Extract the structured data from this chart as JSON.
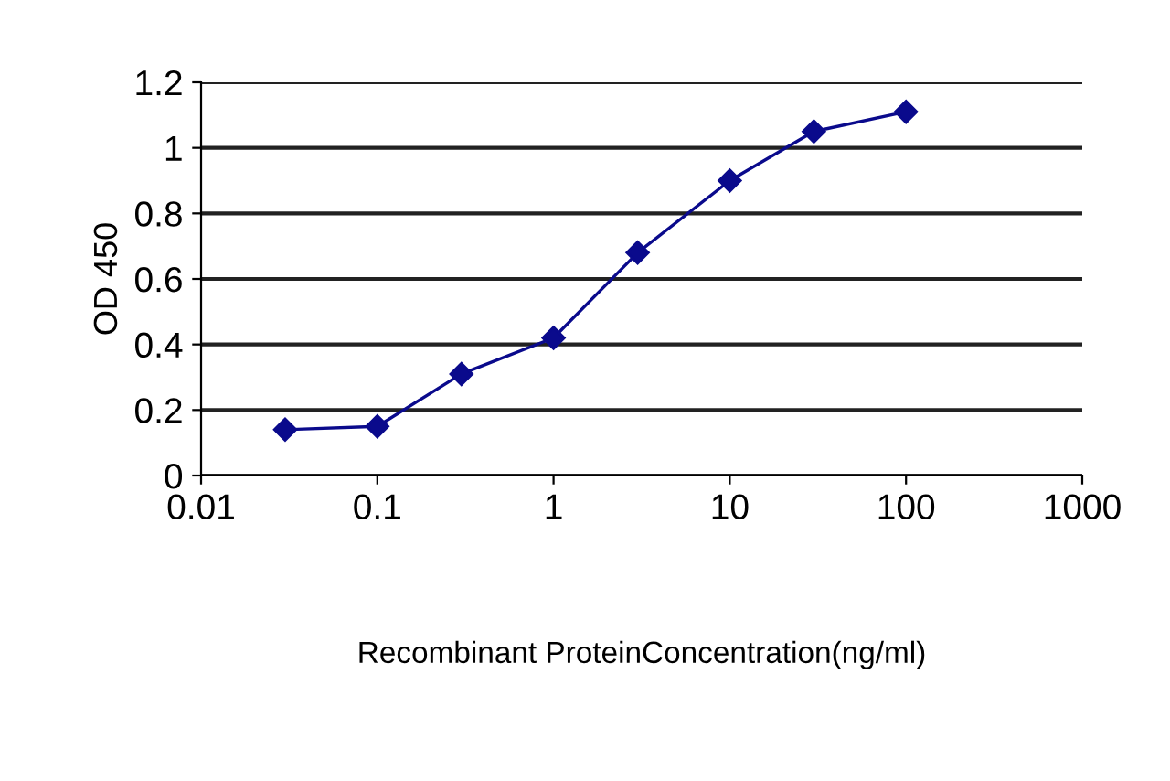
{
  "chart_data": {
    "type": "line",
    "xlabel": "Recombinant ProteinConcentration(ng/ml)",
    "ylabel": "OD 450",
    "x": [
      0.03,
      0.1,
      0.3,
      1,
      3,
      10,
      30,
      100
    ],
    "series": [
      {
        "color": "#0a0a8c",
        "values": [
          0.14,
          0.15,
          0.31,
          0.42,
          0.68,
          0.9,
          1.05,
          1.11
        ]
      }
    ],
    "log": "x",
    "xlim": [
      0.01,
      1000
    ],
    "xticks": [
      0.01,
      0.1,
      1,
      10,
      100,
      1000
    ],
    "ylim": [
      0,
      1.2
    ],
    "yticks": [
      0,
      0.2,
      0.4,
      0.6,
      0.8,
      1,
      1.2
    ],
    "grid": "y",
    "marker": "diamond",
    "line_style": "solid"
  }
}
